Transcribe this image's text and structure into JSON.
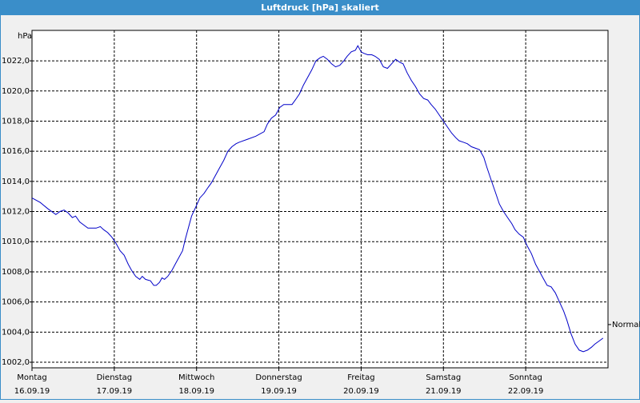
{
  "chart_data": {
    "type": "line",
    "title": "Luftdruck [hPa] skaliert",
    "ylabel": "hPa",
    "color": "#0000c8",
    "grid": true,
    "xlim": [
      0,
      7
    ],
    "ylim": [
      1001.63,
      1024.02
    ],
    "xticks": [
      {
        "value": 0,
        "label": "Montag"
      },
      {
        "value": 1,
        "label": "Dienstag"
      },
      {
        "value": 2,
        "label": "Mittwoch"
      },
      {
        "value": 3,
        "label": "Donnerstag"
      },
      {
        "value": 4,
        "label": "Freitag"
      },
      {
        "value": 5,
        "label": "Samstag"
      },
      {
        "value": 6,
        "label": "Sonntag"
      }
    ],
    "xtick_dates": [
      "16.09.19",
      "17.09.19",
      "18.09.19",
      "19.09.19",
      "20.09.19",
      "21.09.19",
      "22.09.19"
    ],
    "yticks": [
      {
        "value": 1002,
        "label": "1002,0"
      },
      {
        "value": 1004,
        "label": "1004,0"
      },
      {
        "value": 1006,
        "label": "1006,0"
      },
      {
        "value": 1008,
        "label": "1008,0"
      },
      {
        "value": 1010,
        "label": "1010,0"
      },
      {
        "value": 1012,
        "label": "1012,0"
      },
      {
        "value": 1014,
        "label": "1014,0"
      },
      {
        "value": 1016,
        "label": "1016,0"
      },
      {
        "value": 1018,
        "label": "1018,0"
      },
      {
        "value": 1020,
        "label": "1020,0"
      },
      {
        "value": 1022,
        "label": "1022,0"
      }
    ],
    "normal": {
      "value": 1004.5,
      "label": "Normal"
    },
    "x": [
      0,
      0.1,
      0.19,
      0.29,
      0.34,
      0.39,
      0.44,
      0.49,
      0.53,
      0.58,
      0.68,
      0.78,
      0.83,
      0.87,
      0.92,
      0.97,
      1.02,
      1.07,
      1.12,
      1.17,
      1.21,
      1.26,
      1.31,
      1.34,
      1.38,
      1.44,
      1.48,
      1.51,
      1.55,
      1.58,
      1.61,
      1.65,
      1.7,
      1.75,
      1.83,
      1.86,
      1.9,
      1.94,
      1.99,
      2.04,
      2.09,
      2.14,
      2.18,
      2.23,
      2.28,
      2.33,
      2.38,
      2.43,
      2.48,
      2.52,
      2.62,
      2.72,
      2.82,
      2.86,
      2.91,
      2.96,
      3.01,
      3.06,
      3.11,
      3.16,
      3.2,
      3.25,
      3.3,
      3.35,
      3.4,
      3.45,
      3.5,
      3.54,
      3.59,
      3.64,
      3.69,
      3.74,
      3.79,
      3.83,
      3.88,
      3.93,
      3.96,
      4.0,
      4.03,
      4.08,
      4.13,
      4.17,
      4.22,
      4.27,
      4.32,
      4.37,
      4.42,
      4.47,
      4.51,
      4.56,
      4.61,
      4.66,
      4.71,
      4.76,
      4.81,
      4.85,
      4.9,
      4.95,
      5.0,
      5.05,
      5.1,
      5.15,
      5.19,
      5.24,
      5.29,
      5.34,
      5.39,
      5.44,
      5.49,
      5.53,
      5.58,
      5.63,
      5.68,
      5.73,
      5.78,
      5.83,
      5.87,
      5.92,
      5.97,
      6.02,
      6.07,
      6.12,
      6.17,
      6.21,
      6.26,
      6.31,
      6.36,
      6.41,
      6.46,
      6.5,
      6.55,
      6.6,
      6.65,
      6.7,
      6.75,
      6.8,
      6.84,
      6.89,
      6.94
    ],
    "values": [
      1012.9,
      1012.6,
      1012.2,
      1011.8,
      1012.0,
      1012.1,
      1011.9,
      1011.6,
      1011.7,
      1011.3,
      1010.9,
      1010.9,
      1011.0,
      1010.8,
      1010.6,
      1010.3,
      1009.9,
      1009.4,
      1009.1,
      1008.5,
      1008.1,
      1007.7,
      1007.5,
      1007.7,
      1007.5,
      1007.4,
      1007.1,
      1007.1,
      1007.3,
      1007.6,
      1007.5,
      1007.7,
      1008.1,
      1008.6,
      1009.4,
      1010.1,
      1010.9,
      1011.7,
      1012.3,
      1012.9,
      1013.2,
      1013.6,
      1013.9,
      1014.4,
      1014.9,
      1015.4,
      1016.0,
      1016.3,
      1016.5,
      1016.6,
      1016.8,
      1017.0,
      1017.3,
      1017.8,
      1018.2,
      1018.4,
      1018.9,
      1019.1,
      1019.1,
      1019.1,
      1019.4,
      1019.8,
      1020.4,
      1020.9,
      1021.4,
      1022.0,
      1022.2,
      1022.3,
      1022.1,
      1021.8,
      1021.6,
      1021.7,
      1022.0,
      1022.3,
      1022.6,
      1022.7,
      1023.0,
      1022.6,
      1022.5,
      1022.4,
      1022.4,
      1022.3,
      1022.1,
      1021.6,
      1021.5,
      1021.8,
      1022.1,
      1021.9,
      1021.8,
      1021.2,
      1020.7,
      1020.3,
      1019.8,
      1019.5,
      1019.4,
      1019.1,
      1018.8,
      1018.4,
      1018.0,
      1017.6,
      1017.2,
      1016.9,
      1016.7,
      1016.6,
      1016.5,
      1016.3,
      1016.2,
      1016.1,
      1015.6,
      1014.9,
      1014.1,
      1013.3,
      1012.5,
      1012.0,
      1011.6,
      1011.2,
      1010.8,
      1010.5,
      1010.3,
      1009.7,
      1009.2,
      1008.5,
      1008.0,
      1007.6,
      1007.1,
      1007.0,
      1006.6,
      1006.0,
      1005.4,
      1004.8,
      1003.9,
      1003.2,
      1002.8,
      1002.7,
      1002.8,
      1003.0,
      1003.2,
      1003.4,
      1003.6
    ]
  }
}
